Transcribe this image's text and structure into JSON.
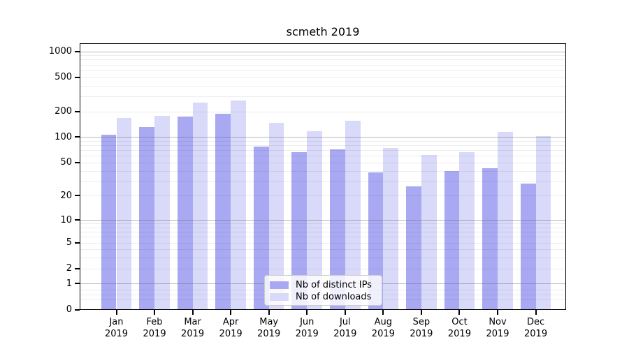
{
  "chart_data": {
    "type": "bar",
    "title": "scmeth 2019",
    "year": "2019",
    "categories": [
      "Jan",
      "Feb",
      "Mar",
      "Apr",
      "May",
      "Jun",
      "Jul",
      "Aug",
      "Sep",
      "Oct",
      "Nov",
      "Dec"
    ],
    "series": [
      {
        "name": "Nb of distinct IPs",
        "color": "#a9a9f3",
        "values": [
          107,
          130,
          175,
          186,
          77,
          67,
          71,
          38,
          26,
          40,
          43,
          28
        ]
      },
      {
        "name": "Nb of downloads",
        "color": "#d9d9f9",
        "values": [
          167,
          177,
          255,
          268,
          147,
          116,
          154,
          75,
          61,
          67,
          115,
          102
        ]
      }
    ],
    "xlabel": "",
    "ylabel": "",
    "y_scale": "log1p",
    "ylim": [
      0,
      1225
    ],
    "y_ticks": [
      0,
      1,
      2,
      5,
      10,
      20,
      50,
      100,
      200,
      500,
      1000
    ],
    "grid": {
      "on": true,
      "major_values": [
        1,
        10,
        100,
        1000
      ],
      "minor_values": [
        0.3,
        0.5,
        0.7,
        2,
        3,
        4,
        5,
        6,
        7,
        8,
        9,
        20,
        30,
        40,
        50,
        60,
        70,
        80,
        90,
        200,
        300,
        400,
        500,
        600,
        700,
        800,
        900
      ]
    },
    "legend": {
      "position": "lower-center",
      "entries": [
        "Nb of distinct IPs",
        "Nb of downloads"
      ]
    }
  },
  "colors": {
    "background": "#ffffff",
    "bar_distinct_ips": "#a9a9f3",
    "bar_downloads": "#d9d9f9",
    "axis": "#000000",
    "grid_major": "#b4b4b4",
    "grid_minor": "#ececec",
    "legend_border": "#cccccc"
  }
}
